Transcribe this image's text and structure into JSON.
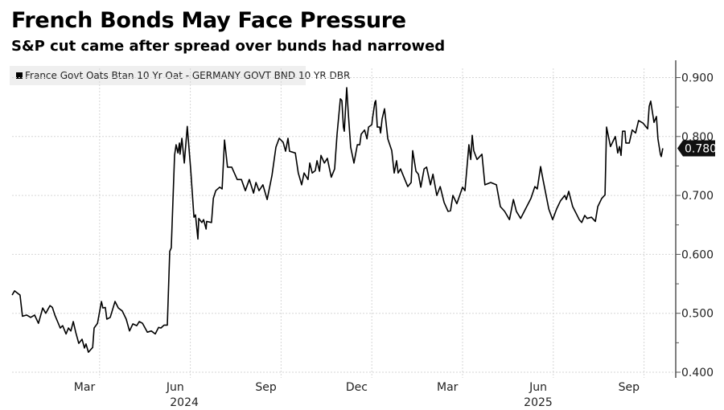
{
  "header": {
    "title": "French Bonds May Face Pressure",
    "subtitle": "S&P cut came after spread over bunds had narrowed"
  },
  "chart_data": {
    "type": "line",
    "title": "French Bonds May Face Pressure",
    "subtitle": "S&P cut came after spread over bunds had narrowed",
    "xlabel": "",
    "ylabel": "",
    "x_unit": "months since 2024-01-01",
    "ylim": [
      0.4,
      0.93
    ],
    "y_ticks": [
      "0.400",
      "0.500",
      "0.600",
      "0.700",
      "0.800",
      "0.900"
    ],
    "y_tick_values": [
      0.4,
      0.5,
      0.6,
      0.7,
      0.8,
      0.9
    ],
    "x_month_labels": [
      {
        "label": "Mar",
        "m": 2.5
      },
      {
        "label": "Jun",
        "m": 5.5
      },
      {
        "label": "Sep",
        "m": 8.5
      },
      {
        "label": "Dec",
        "m": 11.5
      },
      {
        "label": "Mar",
        "m": 14.5
      },
      {
        "label": "Jun",
        "m": 17.5
      },
      {
        "label": "Sep",
        "m": 20.5
      }
    ],
    "x_year_labels": [
      {
        "label": "2024",
        "m": 5.8
      },
      {
        "label": "2025",
        "m": 17.5
      }
    ],
    "x_gridlines": [
      3,
      6,
      9,
      12,
      15,
      18,
      21
    ],
    "grid": true,
    "legend_position": "top-left",
    "last_value_label": "0.780",
    "line_color": "#000000",
    "series": [
      {
        "name": "France Govt Oats Btan 10 Yr Oat - GERMANY GOVT BND 10 YR DBR",
        "x": [
          0.11,
          0.19,
          0.29,
          0.37,
          0.45,
          0.59,
          0.72,
          0.85,
          0.98,
          1.12,
          1.22,
          1.36,
          1.44,
          1.52,
          1.7,
          1.78,
          1.89,
          1.97,
          2.05,
          2.13,
          2.21,
          2.31,
          2.42,
          2.5,
          2.55,
          2.63,
          2.77,
          2.82,
          2.93,
          3.06,
          3.11,
          3.19,
          3.24,
          3.35,
          3.51,
          3.62,
          3.75,
          3.88,
          3.99,
          4.1,
          4.23,
          4.31,
          4.42,
          4.58,
          4.71,
          4.84,
          4.95,
          5.03,
          5.13,
          5.24,
          5.32,
          5.37,
          5.48,
          5.53,
          5.59,
          5.64,
          5.66,
          5.72,
          5.8,
          5.9,
          6.01,
          6.12,
          6.17,
          6.25,
          6.28,
          6.38,
          6.44,
          6.52,
          6.54,
          6.7,
          6.76,
          6.84,
          6.97,
          7.05,
          7.13,
          7.23,
          7.37,
          7.55,
          7.69,
          7.82,
          7.95,
          8.09,
          8.17,
          8.27,
          8.4,
          8.54,
          8.7,
          8.83,
          8.94,
          9.07,
          9.15,
          9.23,
          9.28,
          9.47,
          9.57,
          9.68,
          9.76,
          9.89,
          9.95,
          10.03,
          10.13,
          10.19,
          10.27,
          10.32,
          10.43,
          10.53,
          10.66,
          10.77,
          10.85,
          10.96,
          11.01,
          11.06,
          11.09,
          11.17,
          11.22,
          11.3,
          11.41,
          11.52,
          11.6,
          11.65,
          11.76,
          11.84,
          11.89,
          12.0,
          12.02,
          12.1,
          12.13,
          12.18,
          12.26,
          12.29,
          12.34,
          12.42,
          12.53,
          12.66,
          12.74,
          12.82,
          12.87,
          12.95,
          13.06,
          13.19,
          13.3,
          13.35,
          13.46,
          13.54,
          13.62,
          13.73,
          13.81,
          13.94,
          14.02,
          14.15,
          14.26,
          14.39,
          14.52,
          14.6,
          14.68,
          14.81,
          15.0,
          15.08,
          15.21,
          15.27,
          15.32,
          15.37,
          15.48,
          15.64,
          15.74,
          15.93,
          16.12,
          16.25,
          16.39,
          16.55,
          16.68,
          16.78,
          16.92,
          17.08,
          17.26,
          17.39,
          17.47,
          17.58,
          17.66,
          17.85,
          17.98,
          18.11,
          18.24,
          18.38,
          18.43,
          18.51,
          18.64,
          18.72,
          18.86,
          18.94,
          19.04,
          19.12,
          19.26,
          19.39,
          19.47,
          19.6,
          19.71,
          19.76,
          19.89,
          20.05,
          20.13,
          20.19,
          20.24,
          20.29,
          20.37,
          20.4,
          20.51,
          20.61,
          20.72,
          20.82,
          20.96,
          21.12,
          21.17,
          21.22,
          21.33,
          21.41,
          21.46,
          21.54,
          21.57,
          21.62
        ],
        "values": [
          0.531,
          0.538,
          0.534,
          0.531,
          0.495,
          0.497,
          0.493,
          0.497,
          0.483,
          0.509,
          0.5,
          0.513,
          0.51,
          0.497,
          0.475,
          0.479,
          0.465,
          0.475,
          0.47,
          0.486,
          0.468,
          0.449,
          0.456,
          0.441,
          0.448,
          0.434,
          0.442,
          0.475,
          0.483,
          0.52,
          0.509,
          0.51,
          0.49,
          0.493,
          0.52,
          0.509,
          0.504,
          0.49,
          0.47,
          0.482,
          0.479,
          0.486,
          0.483,
          0.468,
          0.47,
          0.465,
          0.476,
          0.475,
          0.48,
          0.48,
          0.605,
          0.611,
          0.768,
          0.786,
          0.772,
          0.789,
          0.77,
          0.797,
          0.755,
          0.817,
          0.745,
          0.663,
          0.667,
          0.626,
          0.661,
          0.654,
          0.659,
          0.643,
          0.656,
          0.654,
          0.695,
          0.708,
          0.714,
          0.711,
          0.794,
          0.748,
          0.748,
          0.727,
          0.727,
          0.708,
          0.727,
          0.704,
          0.722,
          0.708,
          0.718,
          0.693,
          0.734,
          0.782,
          0.797,
          0.79,
          0.775,
          0.797,
          0.775,
          0.772,
          0.738,
          0.718,
          0.738,
          0.727,
          0.755,
          0.738,
          0.742,
          0.759,
          0.741,
          0.768,
          0.755,
          0.763,
          0.731,
          0.745,
          0.804,
          0.864,
          0.861,
          0.816,
          0.809,
          0.883,
          0.841,
          0.782,
          0.755,
          0.786,
          0.786,
          0.804,
          0.811,
          0.796,
          0.816,
          0.82,
          0.83,
          0.858,
          0.861,
          0.816,
          0.816,
          0.806,
          0.83,
          0.847,
          0.796,
          0.776,
          0.738,
          0.759,
          0.738,
          0.745,
          0.731,
          0.715,
          0.722,
          0.776,
          0.741,
          0.736,
          0.714,
          0.745,
          0.748,
          0.718,
          0.736,
          0.7,
          0.715,
          0.688,
          0.673,
          0.674,
          0.7,
          0.686,
          0.714,
          0.708,
          0.786,
          0.761,
          0.802,
          0.776,
          0.761,
          0.77,
          0.718,
          0.722,
          0.718,
          0.681,
          0.673,
          0.659,
          0.693,
          0.673,
          0.661,
          0.677,
          0.695,
          0.715,
          0.711,
          0.749,
          0.727,
          0.677,
          0.659,
          0.677,
          0.691,
          0.7,
          0.693,
          0.707,
          0.681,
          0.673,
          0.659,
          0.654,
          0.666,
          0.661,
          0.663,
          0.656,
          0.681,
          0.695,
          0.701,
          0.816,
          0.783,
          0.8,
          0.772,
          0.783,
          0.768,
          0.809,
          0.809,
          0.789,
          0.789,
          0.811,
          0.806,
          0.827,
          0.823,
          0.813,
          0.851,
          0.86,
          0.824,
          0.834,
          0.796,
          0.77,
          0.766,
          0.78
        ]
      }
    ]
  }
}
